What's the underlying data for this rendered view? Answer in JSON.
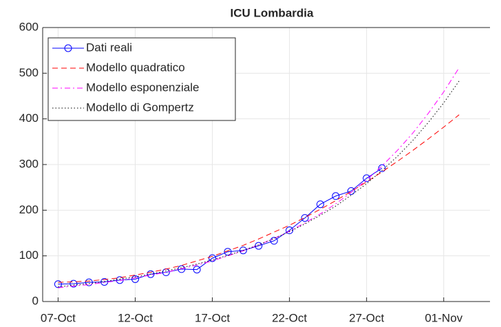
{
  "chart_data": {
    "type": "line",
    "title": "ICU Lombardia",
    "x": [
      "07-Oct",
      "08-Oct",
      "09-Oct",
      "10-Oct",
      "11-Oct",
      "12-Oct",
      "13-Oct",
      "14-Oct",
      "15-Oct",
      "16-Oct",
      "17-Oct",
      "18-Oct",
      "19-Oct",
      "20-Oct",
      "21-Oct",
      "22-Oct",
      "23-Oct",
      "24-Oct",
      "25-Oct",
      "26-Oct",
      "27-Oct",
      "28-Oct",
      "29-Oct",
      "30-Oct",
      "31-Oct",
      "01-Nov",
      "02-Nov"
    ],
    "series": [
      {
        "name": "Dati reali",
        "color": "#0000ff",
        "style": "solid",
        "marker": "circle",
        "values": [
          38,
          39,
          42,
          43,
          47,
          49,
          60,
          64,
          71,
          70,
          95,
          109,
          112,
          122,
          133,
          156,
          183,
          213,
          231,
          242,
          270,
          292,
          null,
          null,
          null,
          null,
          null
        ]
      },
      {
        "name": "Modello quadratico",
        "color": "#ff0000",
        "style": "dashed",
        "values": [
          42,
          43,
          45,
          48,
          52,
          58,
          64,
          71,
          79,
          89,
          99,
          111,
          123,
          137,
          152,
          167,
          184,
          202,
          221,
          241,
          262,
          284,
          307,
          331,
          356,
          382,
          409
        ]
      },
      {
        "name": "Modello esponenziale",
        "color": "#ff00ff",
        "style": "dashdot",
        "values": [
          30,
          34,
          37,
          42,
          46,
          52,
          58,
          64,
          72,
          80,
          89,
          100,
          111,
          124,
          138,
          154,
          172,
          192,
          214,
          239,
          266,
          297,
          331,
          369,
          412,
          459,
          512
        ]
      },
      {
        "name": "Modello di Gompertz",
        "color": "#000000",
        "style": "dotted",
        "values": [
          32,
          36,
          39,
          44,
          49,
          54,
          60,
          67,
          74,
          82,
          91,
          101,
          112,
          124,
          138,
          153,
          170,
          189,
          209,
          233,
          258,
          287,
          318,
          353,
          392,
          435,
          483
        ]
      }
    ],
    "xlim": [
      "06-Oct",
      "04-Nov"
    ],
    "xticks": [
      "07-Oct",
      "12-Oct",
      "17-Oct",
      "22-Oct",
      "27-Oct",
      "01-Nov"
    ],
    "ylim": [
      0,
      600
    ],
    "yticks": [
      0,
      100,
      200,
      300,
      400,
      500,
      600
    ],
    "grid": true,
    "legend": "upper left"
  }
}
